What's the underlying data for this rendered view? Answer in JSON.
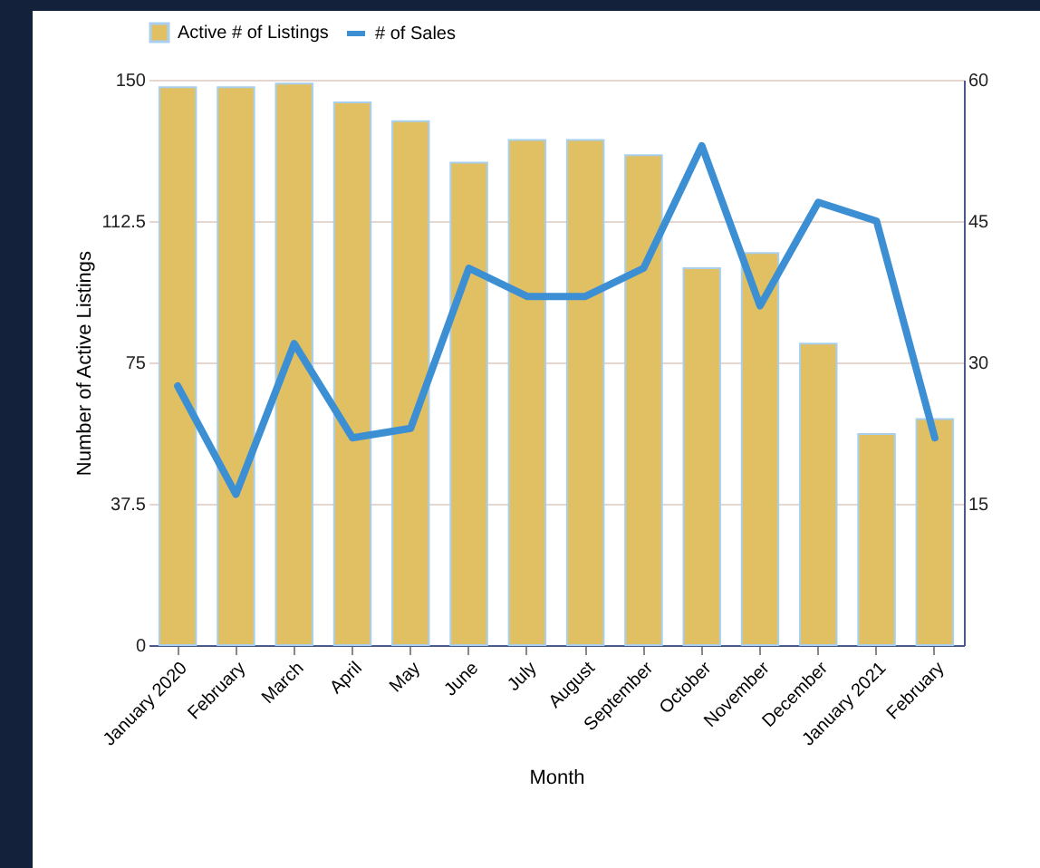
{
  "chart_data": {
    "type": "bar",
    "xlabel": "Month",
    "ylabel": "Number of Active Listings",
    "categories": [
      "January 2020",
      "February",
      "March",
      "April",
      "May",
      "June",
      "July",
      "August",
      "September",
      "October",
      "November",
      "December",
      "January 2021",
      "February"
    ],
    "series": [
      {
        "name": "Active # of Listings",
        "color": "#e0c062",
        "values": [
          148,
          148,
          149,
          144,
          139,
          128,
          134,
          134,
          130,
          100,
          104,
          80,
          56,
          60
        ]
      },
      {
        "name": "# of Sales",
        "type": "line",
        "axis": "y2",
        "color": "#3d8fd4",
        "values": [
          27.5,
          16,
          32,
          22,
          23,
          40,
          37,
          37,
          40,
          53,
          36,
          47,
          45,
          22
        ]
      }
    ],
    "ylim": [
      0,
      150
    ],
    "yticks": [
      0,
      37.5,
      75,
      112.5,
      150
    ],
    "y2lim": [
      0,
      60
    ],
    "y2ticks": [
      15,
      30,
      45,
      60
    ],
    "grid": "y",
    "legend": "top",
    "marker": "none",
    "line_style": "solid"
  }
}
